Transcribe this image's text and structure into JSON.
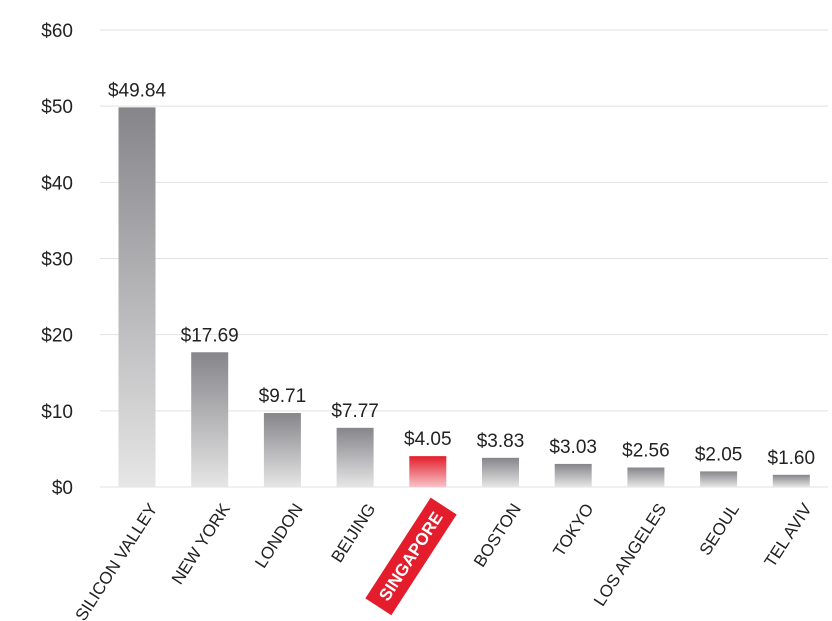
{
  "chart_data": {
    "type": "bar",
    "categories": [
      "SILICON VALLEY",
      "NEW YORK",
      "LONDON",
      "BEIJING",
      "SINGAPORE",
      "BOSTON",
      "TOKYO",
      "LOS ANGELES",
      "SEOUL",
      "TEL AVIV"
    ],
    "values": [
      49.84,
      17.69,
      9.71,
      7.77,
      4.05,
      3.83,
      3.03,
      2.56,
      2.05,
      1.6
    ],
    "value_labels": [
      "$49.84",
      "$17.69",
      "$9.71",
      "$7.77",
      "$4.05",
      "$3.83",
      "$3.03",
      "$2.56",
      "$2.05",
      "$1.60"
    ],
    "y_ticks": [
      0,
      10,
      20,
      30,
      40,
      50,
      60
    ],
    "y_tick_labels": [
      "$0",
      "$10",
      "$20",
      "$30",
      "$40",
      "$50",
      "$60"
    ],
    "ylim": [
      0,
      60
    ],
    "grid": true,
    "highlight_category": "SINGAPORE",
    "colors": {
      "bar_top": "#86858a",
      "bar_bottom": "#e6e6e6",
      "highlight_top": "#e31d2b",
      "highlight_bottom": "#f7c4c8",
      "highlight_label_bg": "#e31d2b",
      "grid": "#e2e2e2",
      "text": "#222222"
    }
  }
}
